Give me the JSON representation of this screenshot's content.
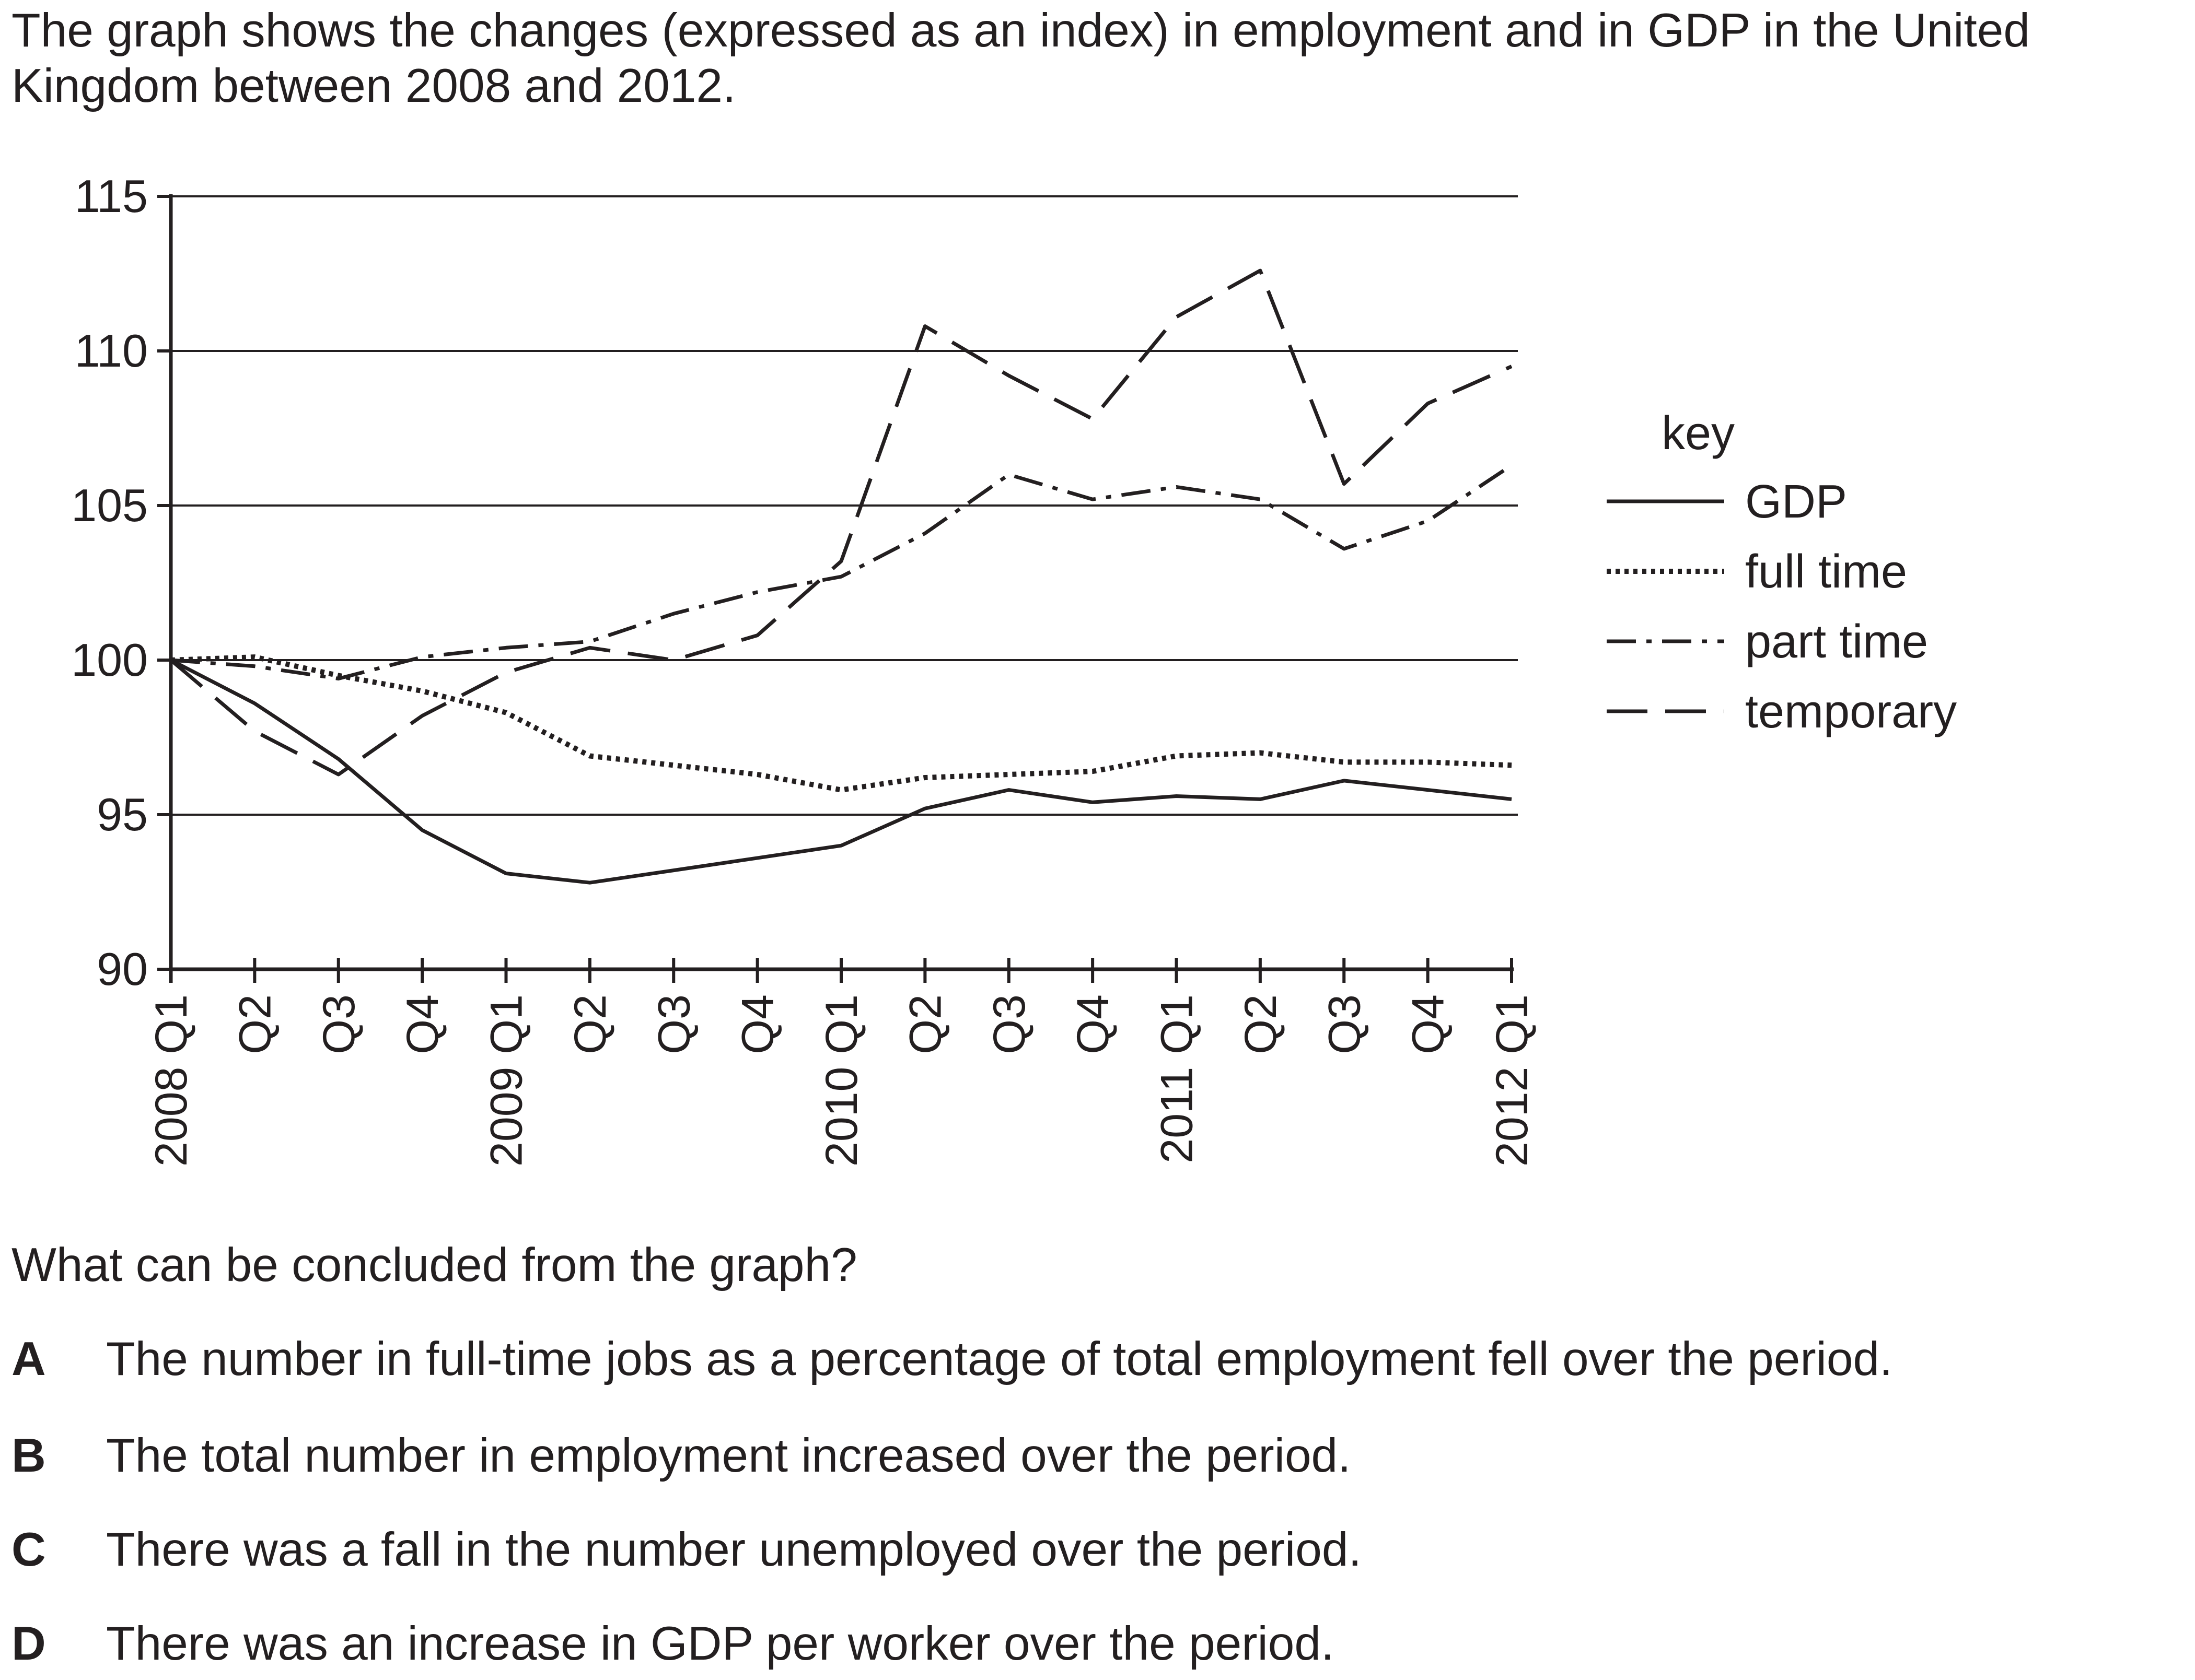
{
  "intro": "The graph shows the changes (expressed as an index) in employment and in GDP in the United Kingdom between 2008 and 2012.",
  "question": "What can be concluded from the graph?",
  "options": [
    {
      "letter": "A",
      "text": "The number in full-time jobs as a percentage of total employment fell over the period."
    },
    {
      "letter": "B",
      "text": "The total number in employment increased over the period."
    },
    {
      "letter": "C",
      "text": "There was a fall in the number unemployed over the period."
    },
    {
      "letter": "D",
      "text": "There was an increase in GDP per worker over the period."
    }
  ],
  "chart_data": {
    "type": "line",
    "title": "",
    "xlabel": "",
    "ylabel": "",
    "ylim": [
      90,
      115
    ],
    "yticks": [
      90,
      95,
      100,
      105,
      110,
      115
    ],
    "grid": "horizontal",
    "legend_title": "key",
    "legend_position": "right",
    "categories": [
      [
        "Q1",
        "2008"
      ],
      [
        "Q2",
        ""
      ],
      [
        "Q3",
        ""
      ],
      [
        "Q4",
        ""
      ],
      [
        "Q1",
        "2009"
      ],
      [
        "Q2",
        ""
      ],
      [
        "Q3",
        ""
      ],
      [
        "Q4",
        ""
      ],
      [
        "Q1",
        "2010"
      ],
      [
        "Q2",
        ""
      ],
      [
        "Q3",
        ""
      ],
      [
        "Q4",
        ""
      ],
      [
        "Q1",
        "2011"
      ],
      [
        "Q2",
        ""
      ],
      [
        "Q3",
        ""
      ],
      [
        "Q4",
        ""
      ],
      [
        "Q1",
        "2012"
      ]
    ],
    "series": [
      {
        "name": "GDP",
        "style": "solid",
        "values": [
          100,
          98.6,
          96.8,
          94.5,
          93.1,
          92.8,
          93.2,
          93.6,
          94.0,
          95.2,
          95.8,
          95.4,
          95.6,
          95.5,
          96.1,
          95.8,
          95.5
        ]
      },
      {
        "name": "full time",
        "style": "dotted",
        "values": [
          100,
          100.1,
          99.5,
          99.0,
          98.3,
          96.9,
          96.6,
          96.3,
          95.8,
          96.2,
          96.3,
          96.4,
          96.9,
          97.0,
          96.7,
          96.7,
          96.6
        ]
      },
      {
        "name": "part time",
        "style": "dashdot",
        "values": [
          100,
          99.8,
          99.4,
          100.1,
          100.4,
          100.6,
          101.5,
          102.2,
          102.7,
          104.1,
          106.0,
          105.2,
          105.6,
          105.2,
          103.6,
          104.5,
          106.3
        ]
      },
      {
        "name": "temporary",
        "style": "dashed",
        "values": [
          100,
          97.7,
          96.3,
          98.2,
          99.6,
          100.4,
          100.0,
          100.8,
          103.2,
          110.8,
          109.2,
          107.8,
          111.1,
          112.6,
          105.7,
          108.3,
          109.5
        ]
      }
    ],
    "colors": {
      "line": "#231f20",
      "grid": "#231f20"
    }
  }
}
